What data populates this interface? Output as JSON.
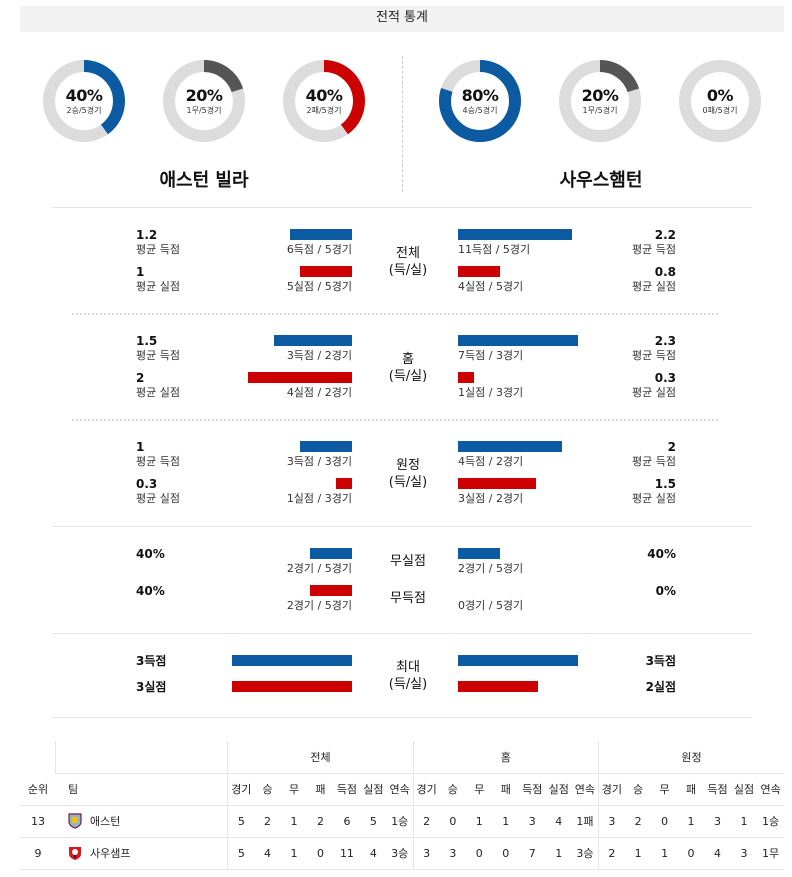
{
  "header": {
    "title": "전적 통계"
  },
  "donuts": [
    {
      "pct": "40%",
      "sub": "2승/5경기",
      "fraction": 0.4,
      "color": "#0b5aa2"
    },
    {
      "pct": "20%",
      "sub": "1무/5경기",
      "fraction": 0.2,
      "color": "#555555"
    },
    {
      "pct": "40%",
      "sub": "2패/5경기",
      "fraction": 0.4,
      "color": "#cc0000"
    },
    {
      "pct": "80%",
      "sub": "4승/5경기",
      "fraction": 0.8,
      "color": "#0b5aa2"
    },
    {
      "pct": "20%",
      "sub": "1무/5경기",
      "fraction": 0.2,
      "color": "#555555"
    },
    {
      "pct": "0%",
      "sub": "0패/5경기",
      "fraction": 0.0,
      "color": "#cc0000"
    }
  ],
  "teams": {
    "home": "애스턴 빌라",
    "away": "사우스햄턴"
  },
  "stats": {
    "overall": {
      "center": [
        "전체",
        "(득/실)"
      ],
      "home_scored": {
        "value": "1.2",
        "label": "평균 득점",
        "bar": "6득점 / 5경기",
        "ratio": 0.6
      },
      "home_conceded": {
        "value": "1",
        "label": "평균 실점",
        "bar": "5실점 / 5경기",
        "ratio": 0.5
      },
      "away_scored": {
        "value": "2.2",
        "label": "평균 득점",
        "bar": "11득점 / 5경기",
        "ratio": 1.1
      },
      "away_conceded": {
        "value": "0.8",
        "label": "평균 실점",
        "bar": "4실점 / 5경기",
        "ratio": 0.4
      }
    },
    "home": {
      "center": [
        "홈",
        "(득/실)"
      ],
      "home_scored": {
        "value": "1.5",
        "label": "평균 득점",
        "bar": "3득점 / 2경기",
        "ratio": 0.75
      },
      "home_conceded": {
        "value": "2",
        "label": "평균 실점",
        "bar": "4실점 / 2경기",
        "ratio": 1.0
      },
      "away_scored": {
        "value": "2.3",
        "label": "평균 득점",
        "bar": "7득점 / 3경기",
        "ratio": 1.15
      },
      "away_conceded": {
        "value": "0.3",
        "label": "평균 실점",
        "bar": "1실점 / 3경기",
        "ratio": 0.15
      }
    },
    "away": {
      "center": [
        "원정",
        "(득/실)"
      ],
      "home_scored": {
        "value": "1",
        "label": "평균 득점",
        "bar": "3득점 / 3경기",
        "ratio": 0.5
      },
      "home_conceded": {
        "value": "0.3",
        "label": "평균 실점",
        "bar": "1실점 / 3경기",
        "ratio": 0.15
      },
      "away_scored": {
        "value": "2",
        "label": "평균 득점",
        "bar": "4득점 / 2경기",
        "ratio": 1.0
      },
      "away_conceded": {
        "value": "1.5",
        "label": "평균 실점",
        "bar": "3실점 / 2경기",
        "ratio": 0.75
      }
    },
    "clean": {
      "cs_label": "무실점",
      "fts_label": "무득점",
      "home_cs": {
        "value": "40%",
        "bar": "2경기 / 5경기",
        "ratio": 0.4
      },
      "home_fts": {
        "value": "40%",
        "bar": "2경기 / 5경기",
        "ratio": 0.4
      },
      "away_cs": {
        "value": "40%",
        "bar": "2경기 / 5경기",
        "ratio": 0.4
      },
      "away_fts": {
        "value": "0%",
        "bar": "0경기 / 5경기",
        "ratio": 0.0
      }
    },
    "max": {
      "center": [
        "최대",
        "(득/실)"
      ],
      "home_scored": {
        "value": "3득점",
        "ratio": 1.0
      },
      "home_conceded": {
        "value": "3실점",
        "ratio": 1.0
      },
      "away_scored": {
        "value": "3득점",
        "ratio": 1.0
      },
      "away_conceded": {
        "value": "2실점",
        "ratio": 0.67
      }
    }
  },
  "standings": {
    "groups": [
      "전체",
      "홈",
      "원정"
    ],
    "headers": {
      "rank": "순위",
      "team": "팀",
      "cols": [
        "경기",
        "승",
        "무",
        "패",
        "득점",
        "실점",
        "연속"
      ]
    },
    "rows": [
      {
        "rank": "13",
        "team": "애스턴",
        "crest": "villa-crest-icon",
        "overall": [
          "5",
          "2",
          "1",
          "2",
          "6",
          "5",
          "1승"
        ],
        "home": [
          "2",
          "0",
          "1",
          "1",
          "3",
          "4",
          "1패"
        ],
        "away": [
          "3",
          "2",
          "0",
          "1",
          "3",
          "1",
          "1승"
        ]
      },
      {
        "rank": "9",
        "team": "사우샘프",
        "crest": "southampton-crest-icon",
        "overall": [
          "5",
          "4",
          "1",
          "0",
          "11",
          "4",
          "3승"
        ],
        "home": [
          "3",
          "3",
          "0",
          "0",
          "7",
          "1",
          "3승"
        ],
        "away": [
          "2",
          "1",
          "1",
          "0",
          "4",
          "3",
          "1무"
        ]
      }
    ]
  }
}
